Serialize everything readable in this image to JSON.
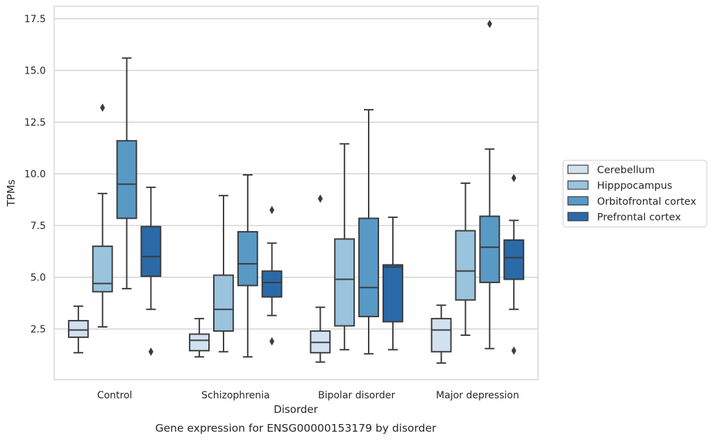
{
  "chart_data": {
    "type": "box",
    "xlabel": "Disorder",
    "ylabel": "TPMs",
    "caption": "Gene expression for ENSG00000153179 by disorder",
    "ylim": [
      0,
      18.1
    ],
    "yticks": [
      2.5,
      5.0,
      7.5,
      10.0,
      12.5,
      15.0,
      17.5
    ],
    "ytick_labels": [
      "2.5",
      "5.0",
      "7.5",
      "10.0",
      "12.5",
      "15.0",
      "17.5"
    ],
    "grid": "horizontal",
    "legend_position": "right",
    "categories": [
      "Control",
      "Schizophrenia",
      "Bipolar disorder",
      "Major depression"
    ],
    "series": [
      {
        "name": "Cerebellum",
        "color": "#d2e1f0",
        "boxes": [
          {
            "min": 1.35,
            "q1": 2.1,
            "median": 2.45,
            "q3": 2.9,
            "max": 3.6,
            "outliers": []
          },
          {
            "min": 1.15,
            "q1": 1.45,
            "median": 1.95,
            "q3": 2.25,
            "max": 3.0,
            "outliers": []
          },
          {
            "min": 0.9,
            "q1": 1.35,
            "median": 1.85,
            "q3": 2.4,
            "max": 3.55,
            "outliers": [
              8.8
            ]
          },
          {
            "min": 0.85,
            "q1": 1.4,
            "median": 2.45,
            "q3": 3.0,
            "max": 3.65,
            "outliers": []
          }
        ]
      },
      {
        "name": "Hipppocampus",
        "color": "#9ac3dd",
        "boxes": [
          {
            "min": 2.6,
            "q1": 4.3,
            "median": 4.7,
            "q3": 6.5,
            "max": 9.05,
            "outliers": [
              13.2
            ]
          },
          {
            "min": 1.4,
            "q1": 2.4,
            "median": 3.45,
            "q3": 5.1,
            "max": 8.95,
            "outliers": []
          },
          {
            "min": 1.5,
            "q1": 2.65,
            "median": 4.9,
            "q3": 6.85,
            "max": 11.45,
            "outliers": []
          },
          {
            "min": 2.2,
            "q1": 3.9,
            "median": 5.3,
            "q3": 7.25,
            "max": 9.55,
            "outliers": []
          }
        ]
      },
      {
        "name": "Orbitofrontal cortex",
        "color": "#5899c6",
        "boxes": [
          {
            "min": 4.45,
            "q1": 7.85,
            "median": 9.5,
            "q3": 11.6,
            "max": 15.6,
            "outliers": []
          },
          {
            "min": 1.15,
            "q1": 4.6,
            "median": 5.65,
            "q3": 7.2,
            "max": 9.95,
            "outliers": []
          },
          {
            "min": 1.3,
            "q1": 3.1,
            "median": 4.5,
            "q3": 7.85,
            "max": 13.1,
            "outliers": []
          },
          {
            "min": 1.55,
            "q1": 4.75,
            "median": 6.45,
            "q3": 7.95,
            "max": 11.2,
            "outliers": [
              17.25
            ]
          }
        ]
      },
      {
        "name": "Prefrontal cortex",
        "color": "#2a6aa8",
        "boxes": [
          {
            "min": 3.45,
            "q1": 5.05,
            "median": 6.0,
            "q3": 7.45,
            "max": 9.35,
            "outliers": [
              1.4
            ]
          },
          {
            "min": 3.15,
            "q1": 4.05,
            "median": 4.75,
            "q3": 5.3,
            "max": 6.65,
            "outliers": [
              8.25,
              1.9
            ]
          },
          {
            "min": 1.5,
            "q1": 2.85,
            "median": 5.5,
            "q3": 5.6,
            "max": 7.9,
            "outliers": []
          },
          {
            "min": 3.45,
            "q1": 4.9,
            "median": 5.95,
            "q3": 6.8,
            "max": 7.75,
            "outliers": [
              9.8,
              1.45
            ]
          }
        ]
      }
    ]
  }
}
